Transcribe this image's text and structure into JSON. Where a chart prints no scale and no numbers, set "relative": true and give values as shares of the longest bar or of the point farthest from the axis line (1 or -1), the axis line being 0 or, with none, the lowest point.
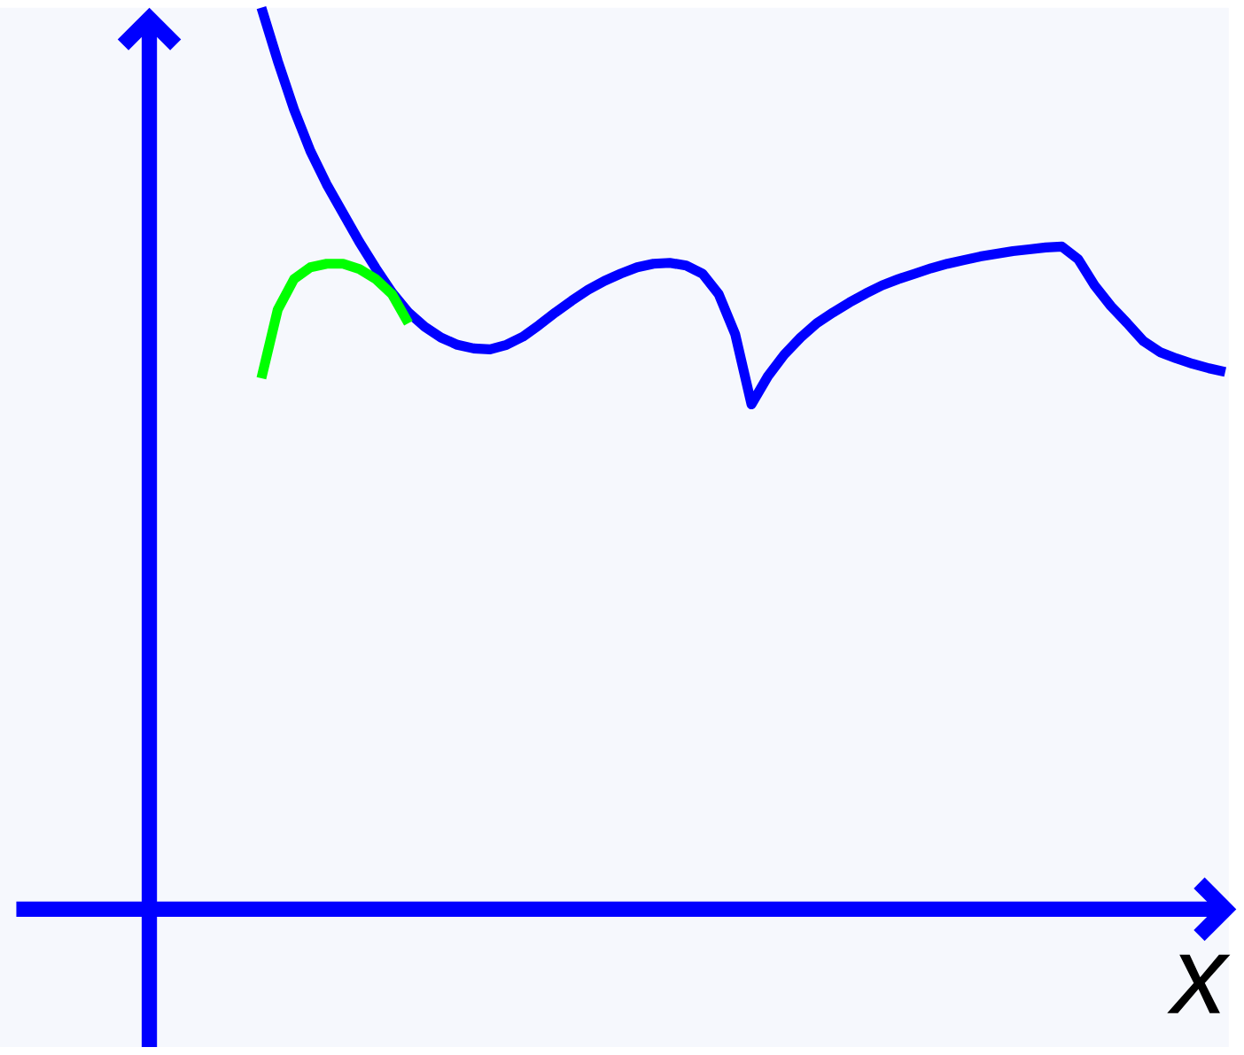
{
  "chart_data": {
    "type": "line",
    "relative": true,
    "xlabel": "x",
    "categories": [
      null,
      null,
      null,
      null,
      null,
      null,
      null,
      null,
      null,
      null,
      null,
      null,
      null,
      null,
      null,
      null,
      null,
      null,
      null,
      null,
      null,
      null,
      null,
      null,
      null,
      null,
      null,
      null,
      null,
      null,
      null,
      null,
      null,
      null,
      null,
      null,
      null,
      null,
      null,
      null,
      null,
      null,
      null,
      null,
      null,
      null,
      null,
      null,
      null,
      null,
      null,
      null,
      null,
      null,
      null,
      null,
      null,
      null,
      null,
      null
    ],
    "series": [
      {
        "color": "#0000ff",
        "values": [
          1.0,
          0.941,
          0.887,
          0.841,
          0.804,
          0.772,
          0.74,
          0.711,
          0.684,
          0.662,
          0.646,
          0.634,
          0.626,
          0.622,
          0.621,
          0.626,
          0.635,
          0.648,
          0.662,
          0.675,
          0.687,
          0.697,
          0.705,
          0.712,
          0.716,
          0.717,
          0.714,
          0.705,
          0.682,
          0.638,
          0.56,
          0.591,
          0.615,
          0.634,
          0.65,
          0.662,
          0.673,
          0.683,
          0.692,
          0.699,
          0.705,
          0.711,
          0.716,
          0.72,
          0.724,
          0.727,
          0.73,
          0.732,
          0.734,
          0.735,
          0.721,
          0.692,
          0.669,
          0.65,
          0.63,
          0.618,
          0.611,
          0.605,
          0.6,
          0.596
        ]
      },
      {
        "color": "#00ff00",
        "values": [
          0.589,
          0.665,
          0.699,
          0.712,
          0.716,
          0.716,
          0.71,
          0.699,
          0.682,
          0.65,
          null,
          null,
          null,
          null,
          null,
          null,
          null,
          null,
          null,
          null,
          null,
          null,
          null,
          null,
          null,
          null,
          null,
          null,
          null,
          null,
          null,
          null,
          null,
          null,
          null,
          null,
          null,
          null,
          null,
          null,
          null,
          null,
          null,
          null,
          null,
          null,
          null,
          null,
          null,
          null,
          null,
          null,
          null,
          null,
          null,
          null,
          null,
          null,
          null,
          null
        ]
      }
    ]
  }
}
